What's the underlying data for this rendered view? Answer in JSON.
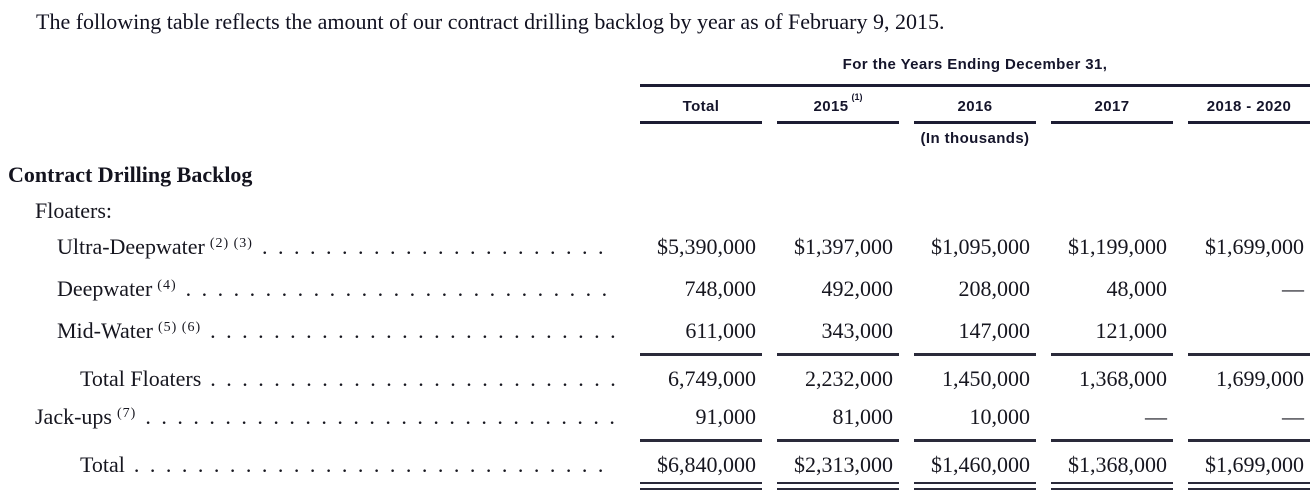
{
  "intro": "The following table reflects the amount of our contract drilling backlog by year as of February 9, 2015.",
  "colors": {
    "text": "#16161f",
    "heading_sans": "#15152b",
    "rule": "#1d1d33",
    "background": "#ffffff"
  },
  "table": {
    "header": {
      "group_title": "For the Years Ending December 31,",
      "columns": [
        "Total",
        "2015",
        "2016",
        "2017",
        "2018 - 2020"
      ],
      "col_2015_footnote": "(1)",
      "units_note": "(In thousands)"
    },
    "section_title": "Contract Drilling Backlog",
    "rows": [
      {
        "label": "Floaters:"
      },
      {
        "label": "Ultra-Deepwater",
        "sup": "(2) (3)",
        "values": [
          "$5,390,000",
          "$1,397,000",
          "$1,095,000",
          "$1,199,000",
          "$1,699,000"
        ]
      },
      {
        "label": "Deepwater",
        "sup": "(4)",
        "values": [
          "748,000",
          "492,000",
          "208,000",
          "48,000",
          "—"
        ]
      },
      {
        "label": "Mid-Water",
        "sup": "(5) (6)",
        "values": [
          "611,000",
          "343,000",
          "147,000",
          "121,000",
          ""
        ]
      },
      {
        "label": "Total Floaters",
        "values": [
          "6,749,000",
          "2,232,000",
          "1,450,000",
          "1,368,000",
          "1,699,000"
        ]
      },
      {
        "label": "Jack-ups",
        "sup": "(7)",
        "values": [
          "91,000",
          "81,000",
          "10,000",
          "—",
          "—"
        ]
      },
      {
        "label": "Total",
        "values": [
          "$6,840,000",
          "$2,313,000",
          "$1,460,000",
          "$1,368,000",
          "$1,699,000"
        ]
      }
    ]
  }
}
